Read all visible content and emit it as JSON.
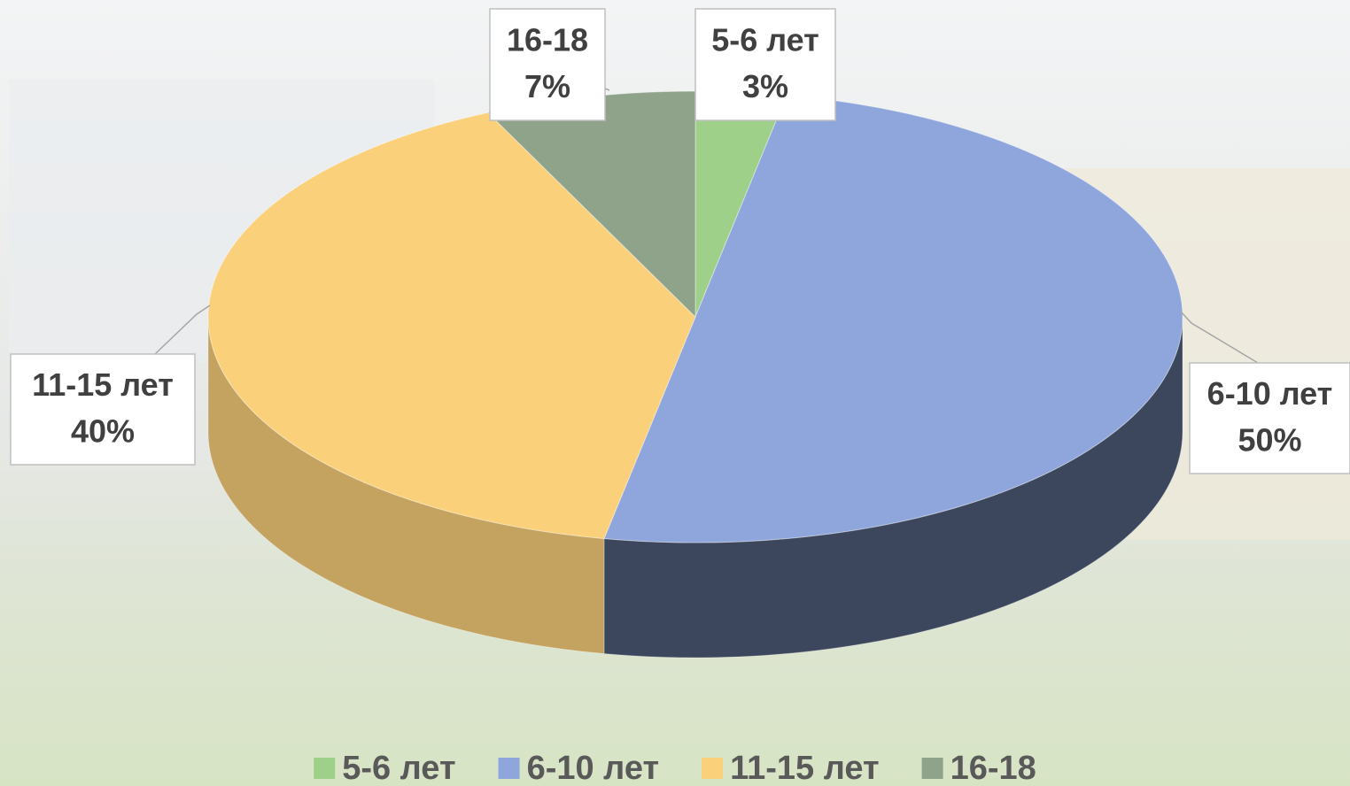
{
  "chart_data": {
    "type": "pie3d",
    "categories": [
      "5-6 лет",
      "6-10 лет",
      "11-15 лет",
      "16-18"
    ],
    "values": [
      3,
      50,
      40,
      7
    ],
    "value_labels": [
      "3%",
      "50%",
      "40%",
      "7%"
    ],
    "colors": [
      "#9fd08a",
      "#8ea6dc",
      "#fbd07a",
      "#8fa38a"
    ],
    "legend": "bottom"
  }
}
